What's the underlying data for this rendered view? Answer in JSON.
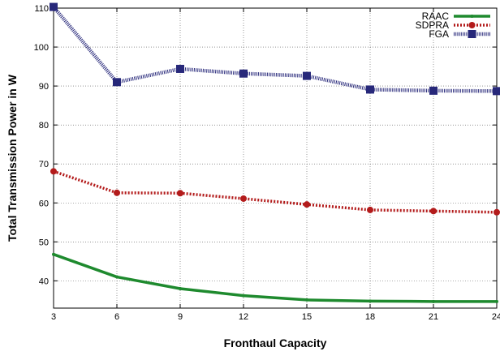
{
  "chart_data": {
    "type": "line",
    "title": "",
    "xlabel": "Fronthaul Capacity",
    "ylabel": "Total Transmission Power in W",
    "x": [
      3,
      6,
      9,
      12,
      15,
      18,
      21,
      24
    ],
    "xlim": [
      3,
      24
    ],
    "ylim": [
      33,
      110
    ],
    "xticks": [
      3,
      6,
      9,
      12,
      15,
      18,
      21,
      24
    ],
    "yticks": [
      40,
      50,
      60,
      70,
      80,
      90,
      100,
      110
    ],
    "grid": true,
    "legend_position": "top-right",
    "series": [
      {
        "name": "RAAC",
        "color": "#1e8a2e",
        "style": "solid",
        "marker": "dot",
        "values": [
          46.8,
          41.0,
          38.0,
          36.2,
          35.1,
          34.8,
          34.7,
          34.7
        ]
      },
      {
        "name": "SDPRA",
        "color": "#b31b1b",
        "style": "dotted",
        "marker": "circle",
        "values": [
          68.1,
          62.6,
          62.5,
          61.1,
          59.6,
          58.2,
          57.9,
          57.6
        ]
      },
      {
        "name": "FGA",
        "color": "#27287a",
        "style": "hatched",
        "marker": "square",
        "values": [
          110.3,
          91.0,
          94.4,
          93.2,
          92.6,
          89.1,
          88.8,
          88.7
        ]
      }
    ]
  }
}
